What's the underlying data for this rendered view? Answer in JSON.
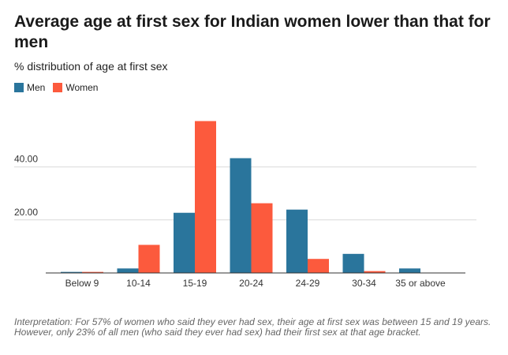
{
  "title": "Average age at first sex for Indian women lower than that for men",
  "subtitle": "% distribution of age at first sex",
  "footnote": "Interpretation: For 57% of women who said they ever had sex, their age at first sex was between 15 and 19 years. However, only 23% of all men (who said they ever had sex) had their first sex at that age bracket.",
  "colors": {
    "men": "#2a759c",
    "women": "#fc5a3d",
    "grid": "#d9d9d9",
    "axis": "#333333"
  },
  "chart_data": {
    "type": "bar",
    "title": "Average age at first sex for Indian women lower than that for men",
    "subtitle": "% distribution of age at first sex",
    "xlabel": "",
    "ylabel": "",
    "categories": [
      "Below 9",
      "10-14",
      "15-19",
      "20-24",
      "24-29",
      "30-34",
      "35 or above"
    ],
    "series": [
      {
        "name": "Men",
        "values": [
          0.4,
          1.7,
          22.7,
          43.3,
          23.9,
          7.2,
          1.7
        ]
      },
      {
        "name": "Women",
        "values": [
          0.4,
          10.6,
          57.3,
          26.3,
          5.3,
          0.7,
          0.0
        ]
      }
    ],
    "ylim": [
      0,
      60
    ],
    "yticks": [
      20,
      40
    ],
    "ytick_labels": [
      "20.00",
      "40.00"
    ],
    "grid": true,
    "legend": "top-left"
  }
}
